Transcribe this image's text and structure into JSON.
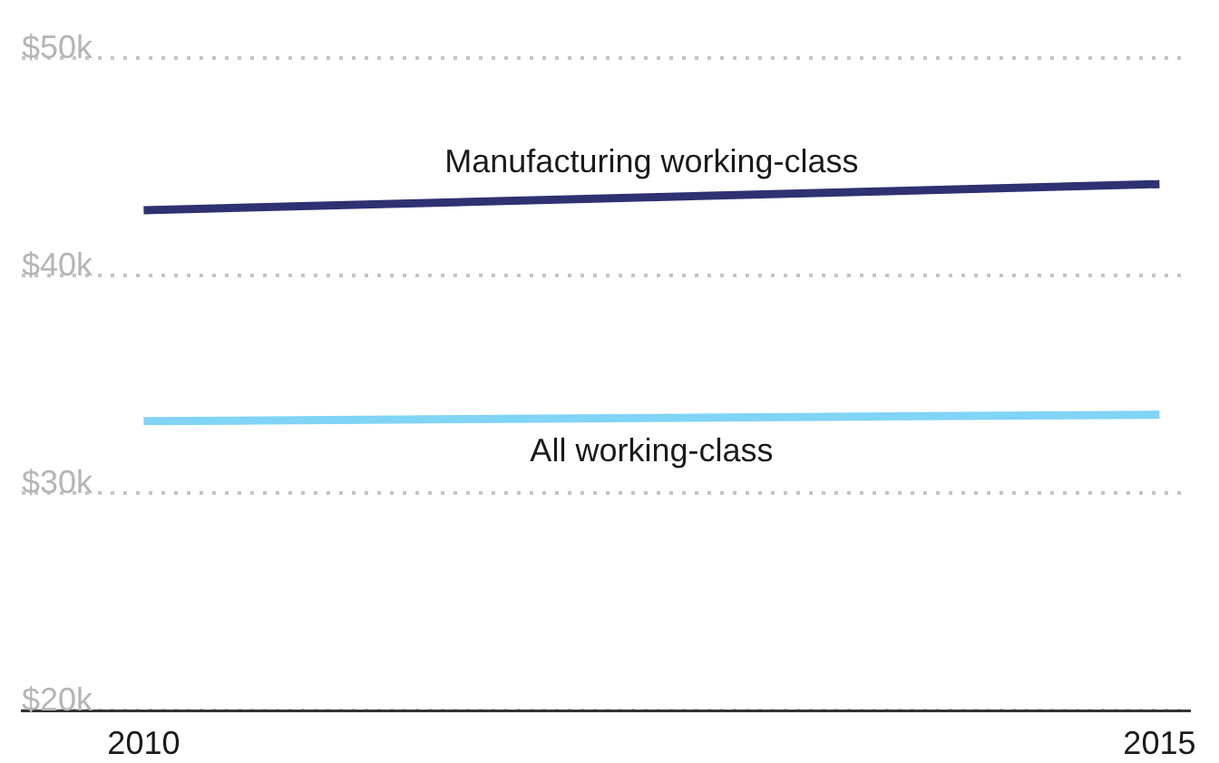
{
  "chart_data": {
    "type": "line",
    "x": [
      2010,
      2015
    ],
    "series": [
      {
        "name": "Manufacturing working-class",
        "color": "#2e3172",
        "values": [
          43000,
          44200
        ]
      },
      {
        "name": "All working-class",
        "color": "#80d4f6",
        "values": [
          33300,
          33600
        ]
      }
    ],
    "xlim": [
      2009.4,
      2015.15
    ],
    "xticks": [
      2010,
      2015
    ],
    "ylim": [
      20000,
      50000
    ],
    "yticks": [
      {
        "value": 20000,
        "label": "$20k"
      },
      {
        "value": 30000,
        "label": "$30k"
      },
      {
        "value": 40000,
        "label": "$40k"
      },
      {
        "value": 50000,
        "label": "$50k"
      }
    ],
    "grid": "y",
    "legend": false,
    "marker": "none",
    "line_style": "solid"
  }
}
